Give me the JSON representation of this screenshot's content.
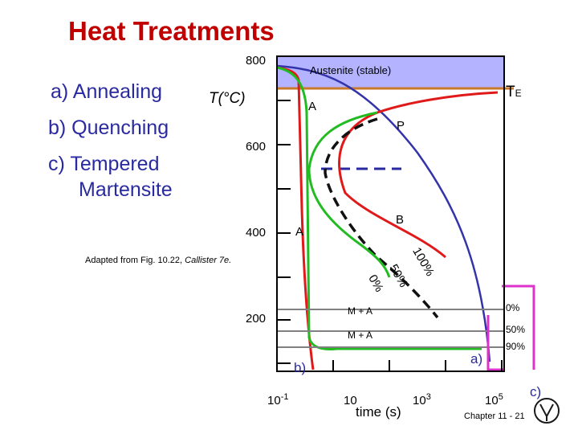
{
  "title": "Heat Treatments",
  "treatments": {
    "annealing": "a) Annealing",
    "quenching": "b) Quenching",
    "tempered_line1": "c) Tempered",
    "tempered_line2": "Martensite"
  },
  "axes": {
    "y_label": "T(°C)",
    "y_ticks": [
      "800",
      "600",
      "400",
      "200"
    ],
    "x_label": "time (s)",
    "x_ticks": [
      {
        "base": "10",
        "exp": "-1"
      },
      {
        "base": "10",
        "exp": ""
      },
      {
        "base": "10",
        "exp": "3"
      },
      {
        "base": "10",
        "exp": "5"
      }
    ]
  },
  "labels": {
    "austenite": "Austenite (stable)",
    "te_main": "T",
    "te_sub": "E",
    "a_upper": "A",
    "p": "P",
    "b": "B",
    "a_lower": "A",
    "pct_100": "100%",
    "pct_50": "50%",
    "pct_0": "0%",
    "m_a_1": "M + A",
    "m_a_2": "M + A",
    "right_0": "0%",
    "right_50": "50%",
    "right_90": "90%",
    "path_a": "a)",
    "path_b": "b)",
    "path_c": "c)"
  },
  "credit": {
    "text": "Adapted from Fig. 10.22, ",
    "source": "Callister 7e."
  },
  "footer": "Chapter 11 - 21",
  "colors": {
    "title": "#c00000",
    "list_text": "#2a2aa0",
    "austenite_fill": "#b3b3ff",
    "te_line": "#c87a2a",
    "red_curve": "#e01a1a",
    "green_curve": "#22bb22",
    "blue_curve": "#3333aa",
    "magenta": "#dd33cc",
    "dashed": "#2a2aa0"
  }
}
